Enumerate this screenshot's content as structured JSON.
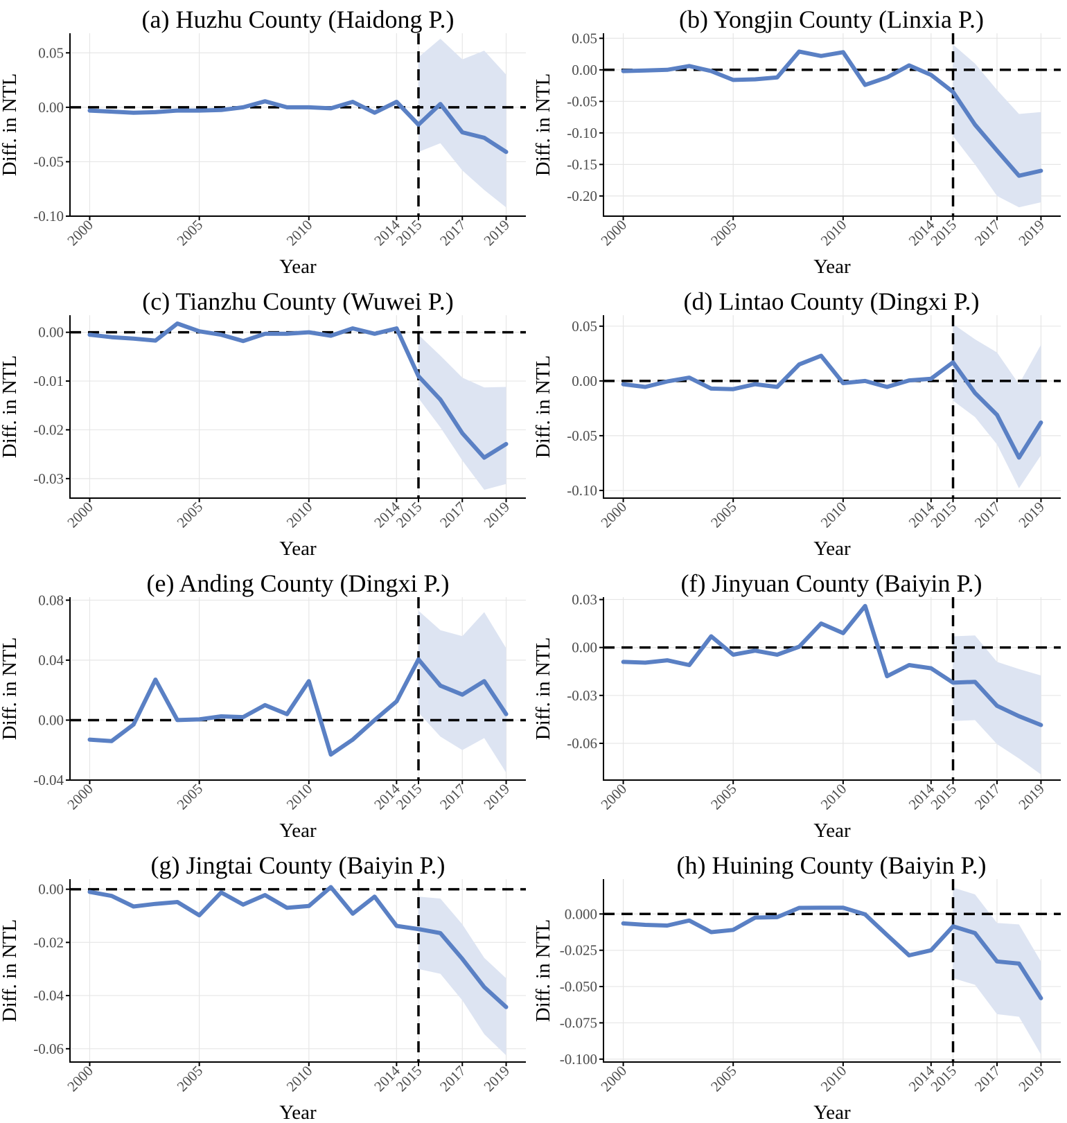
{
  "colors": {
    "line": "#5a80c4",
    "band": "#dde4f2"
  },
  "chart_data": [
    {
      "type": "line",
      "title": "(a) Huzhu County (Haidong P.)",
      "xlabel": "Year",
      "ylabel": "Diff. in NTL",
      "x": [
        2000,
        2001,
        2002,
        2003,
        2004,
        2005,
        2006,
        2007,
        2008,
        2009,
        2010,
        2011,
        2012,
        2013,
        2014,
        2015,
        2016,
        2017,
        2018,
        2019
      ],
      "xticks": [
        "2000",
        "2005",
        "2010",
        "2014",
        "2015",
        "2017",
        "2019"
      ],
      "ylim": [
        -0.1,
        0.068
      ],
      "yticks": [
        "0.05",
        "0.00",
        "-0.05",
        "-0.10"
      ],
      "series": [
        {
          "values": [
            -0.003,
            -0.004,
            -0.005,
            -0.0045,
            -0.003,
            -0.003,
            -0.0025,
            0.0,
            0.0055,
            0.0,
            0.0,
            -0.001,
            0.005,
            -0.005,
            0.005,
            -0.016,
            0.003,
            -0.023,
            -0.028,
            -0.041
          ]
        }
      ],
      "ci": {
        "start_year": 2015,
        "lower": [
          -0.041,
          -0.033,
          -0.058,
          -0.076,
          -0.092
        ],
        "upper": [
          0.046,
          0.063,
          0.044,
          0.052,
          0.03
        ]
      },
      "treatment_year": 2015
    },
    {
      "type": "line",
      "title": "(b) Yongjin County (Linxia P.)",
      "xlabel": "Year",
      "ylabel": "Diff. in NTL",
      "x": [
        2000,
        2001,
        2002,
        2003,
        2004,
        2005,
        2006,
        2007,
        2008,
        2009,
        2010,
        2011,
        2012,
        2013,
        2014,
        2015,
        2016,
        2017,
        2018,
        2019
      ],
      "xticks": [
        "2000",
        "2005",
        "2010",
        "2014",
        "2015",
        "2017",
        "2019"
      ],
      "ylim": [
        -0.232,
        0.058
      ],
      "yticks": [
        "0.05",
        "0.00",
        "-0.05",
        "-0.10",
        "-0.15",
        "-0.20"
      ],
      "series": [
        {
          "values": [
            -0.002,
            -0.001,
            0.0,
            0.006,
            -0.002,
            -0.016,
            -0.015,
            -0.012,
            0.029,
            0.022,
            0.028,
            -0.024,
            -0.012,
            0.007,
            -0.008,
            -0.035,
            -0.087,
            -0.128,
            -0.168,
            -0.16
          ]
        }
      ],
      "ci": {
        "start_year": 2015,
        "lower": [
          -0.105,
          -0.15,
          -0.2,
          -0.218,
          -0.21
        ],
        "upper": [
          0.04,
          0.01,
          -0.032,
          -0.07,
          -0.067
        ]
      },
      "treatment_year": 2015
    },
    {
      "type": "line",
      "title": "(c) Tianzhu County (Wuwei P.)",
      "xlabel": "Year",
      "ylabel": "Diff. in NTL",
      "x": [
        2000,
        2001,
        2002,
        2003,
        2004,
        2005,
        2006,
        2007,
        2008,
        2009,
        2010,
        2011,
        2012,
        2013,
        2014,
        2015,
        2016,
        2017,
        2018,
        2019
      ],
      "xticks": [
        "2000",
        "2005",
        "2010",
        "2014",
        "2015",
        "2017",
        "2019"
      ],
      "ylim": [
        -0.034,
        0.0035
      ],
      "yticks": [
        "0.00",
        "-0.01",
        "-0.02",
        "-0.03"
      ],
      "series": [
        {
          "values": [
            -0.0005,
            -0.001,
            -0.0013,
            -0.0017,
            0.0018,
            0.0002,
            -0.0005,
            -0.0018,
            -0.0003,
            -0.0003,
            0.0,
            -0.0007,
            0.0008,
            -0.0003,
            0.0008,
            -0.009,
            -0.0138,
            -0.0207,
            -0.0257,
            -0.0229
          ]
        }
      ],
      "ci": {
        "start_year": 2015,
        "lower": [
          -0.0135,
          -0.0195,
          -0.0263,
          -0.0323,
          -0.0311
        ],
        "upper": [
          -0.0005,
          -0.0048,
          -0.0093,
          -0.0113,
          -0.0112
        ]
      },
      "treatment_year": 2015
    },
    {
      "type": "line",
      "title": "(d) Lintao County (Dingxi P.)",
      "xlabel": "Year",
      "ylabel": "Diff. in NTL",
      "x": [
        2000,
        2001,
        2002,
        2003,
        2004,
        2005,
        2006,
        2007,
        2008,
        2009,
        2010,
        2011,
        2012,
        2013,
        2014,
        2015,
        2016,
        2017,
        2018,
        2019
      ],
      "xticks": [
        "2000",
        "2005",
        "2010",
        "2014",
        "2015",
        "2017",
        "2019"
      ],
      "ylim": [
        -0.107,
        0.06
      ],
      "yticks": [
        "0.05",
        "0.00",
        "-0.05",
        "-0.10"
      ],
      "series": [
        {
          "values": [
            -0.003,
            -0.0055,
            -0.0005,
            0.003,
            -0.007,
            -0.0075,
            -0.003,
            -0.0055,
            0.015,
            0.023,
            -0.002,
            0.0,
            -0.0055,
            0.0005,
            0.002,
            0.017,
            -0.011,
            -0.031,
            -0.07,
            -0.038
          ]
        }
      ],
      "ci": {
        "start_year": 2015,
        "lower": [
          -0.018,
          -0.033,
          -0.058,
          -0.098,
          -0.068
        ],
        "upper": [
          0.052,
          0.038,
          0.026,
          -0.003,
          0.033
        ]
      },
      "treatment_year": 2015
    },
    {
      "type": "line",
      "title": "(e) Anding County (Dingxi P.)",
      "xlabel": "Year",
      "ylabel": "Diff. in NTL",
      "x": [
        2000,
        2001,
        2002,
        2003,
        2004,
        2005,
        2006,
        2007,
        2008,
        2009,
        2010,
        2011,
        2012,
        2013,
        2014,
        2015,
        2016,
        2017,
        2018,
        2019
      ],
      "xticks": [
        "2000",
        "2005",
        "2010",
        "2014",
        "2015",
        "2017",
        "2019"
      ],
      "ylim": [
        -0.04,
        0.082
      ],
      "yticks": [
        "0.08",
        "0.04",
        "0.00",
        "-0.04"
      ],
      "series": [
        {
          "values": [
            -0.013,
            -0.014,
            -0.003,
            0.027,
            0.0,
            0.0005,
            0.0025,
            0.002,
            0.01,
            0.004,
            0.026,
            -0.023,
            -0.013,
            0.0,
            0.0125,
            0.0405,
            0.023,
            0.017,
            0.026,
            0.004
          ]
        }
      ],
      "ci": {
        "start_year": 2015,
        "lower": [
          0.005,
          -0.011,
          -0.02,
          -0.012,
          -0.035
        ],
        "upper": [
          0.073,
          0.06,
          0.056,
          0.072,
          0.048
        ]
      },
      "treatment_year": 2015
    },
    {
      "type": "line",
      "title": "(f) Jinyuan County (Baiyin P.)",
      "xlabel": "Year",
      "ylabel": "Diff. in NTL",
      "x": [
        2000,
        2001,
        2002,
        2003,
        2004,
        2005,
        2006,
        2007,
        2008,
        2009,
        2010,
        2011,
        2012,
        2013,
        2014,
        2015,
        2016,
        2017,
        2018,
        2019
      ],
      "xticks": [
        "2000",
        "2005",
        "2010",
        "2014",
        "2015",
        "2017",
        "2019"
      ],
      "ylim": [
        -0.083,
        0.0315
      ],
      "yticks": [
        "0.03",
        "0.00",
        "-0.03",
        "-0.06"
      ],
      "series": [
        {
          "values": [
            -0.009,
            -0.0095,
            -0.008,
            -0.011,
            0.007,
            -0.0045,
            -0.002,
            -0.0045,
            0.0005,
            0.015,
            0.009,
            0.026,
            -0.018,
            -0.011,
            -0.013,
            -0.022,
            -0.0215,
            -0.0365,
            -0.043,
            -0.0485
          ]
        }
      ],
      "ci": {
        "start_year": 2015,
        "lower": [
          -0.046,
          -0.0455,
          -0.0605,
          -0.0695,
          -0.0795
        ],
        "upper": [
          0.007,
          0.0075,
          -0.009,
          -0.0135,
          -0.0175
        ]
      },
      "treatment_year": 2015
    },
    {
      "type": "line",
      "title": "(g) Jingtai County (Baiyin P.)",
      "xlabel": "Year",
      "ylabel": "Diff. in NTL",
      "x": [
        2000,
        2001,
        2002,
        2003,
        2004,
        2005,
        2006,
        2007,
        2008,
        2009,
        2010,
        2011,
        2012,
        2013,
        2014,
        2015,
        2016,
        2017,
        2018,
        2019
      ],
      "xticks": [
        "2000",
        "2005",
        "2010",
        "2014",
        "2015",
        "2017",
        "2019"
      ],
      "ylim": [
        -0.065,
        0.0038
      ],
      "yticks": [
        "0.00",
        "-0.02",
        "-0.04",
        "-0.06"
      ],
      "series": [
        {
          "values": [
            -0.001,
            -0.0025,
            -0.0065,
            -0.0055,
            -0.0048,
            -0.0098,
            -0.0012,
            -0.0058,
            -0.0022,
            -0.007,
            -0.0063,
            0.0008,
            -0.0092,
            -0.0028,
            -0.0138,
            -0.015,
            -0.0165,
            -0.0262,
            -0.0368,
            -0.0443
          ]
        }
      ],
      "ci": {
        "start_year": 2015,
        "lower": [
          -0.03,
          -0.0318,
          -0.0418,
          -0.0545,
          -0.0625
        ],
        "upper": [
          -0.0028,
          -0.0035,
          -0.0132,
          -0.0258,
          -0.0335
        ]
      },
      "treatment_year": 2015
    },
    {
      "type": "line",
      "title": "(h) Huining County (Baiyin P.)",
      "xlabel": "Year",
      "ylabel": "Diff. in NTL",
      "x": [
        2000,
        2001,
        2002,
        2003,
        2004,
        2005,
        2006,
        2007,
        2008,
        2009,
        2010,
        2011,
        2012,
        2013,
        2014,
        2015,
        2016,
        2017,
        2018,
        2019
      ],
      "xticks": [
        "2000",
        "2005",
        "2010",
        "2014",
        "2015",
        "2017",
        "2019"
      ],
      "ylim": [
        -0.102,
        0.024
      ],
      "yticks": [
        "0.000",
        "-0.025",
        "-0.050",
        "-0.075",
        "-0.100"
      ],
      "series": [
        {
          "values": [
            -0.0065,
            -0.0075,
            -0.008,
            -0.0045,
            -0.0125,
            -0.011,
            -0.0025,
            -0.0022,
            0.0042,
            0.0043,
            0.0043,
            -0.0003,
            -0.0145,
            -0.0285,
            -0.025,
            -0.0085,
            -0.0132,
            -0.0327,
            -0.0342,
            -0.058
          ]
        }
      ],
      "ci": {
        "start_year": 2015,
        "lower": [
          -0.0442,
          -0.0488,
          -0.069,
          -0.0708,
          -0.0968
        ],
        "upper": [
          0.0182,
          0.0135,
          -0.0062,
          -0.0072,
          -0.0328
        ]
      },
      "treatment_year": 2015
    }
  ]
}
